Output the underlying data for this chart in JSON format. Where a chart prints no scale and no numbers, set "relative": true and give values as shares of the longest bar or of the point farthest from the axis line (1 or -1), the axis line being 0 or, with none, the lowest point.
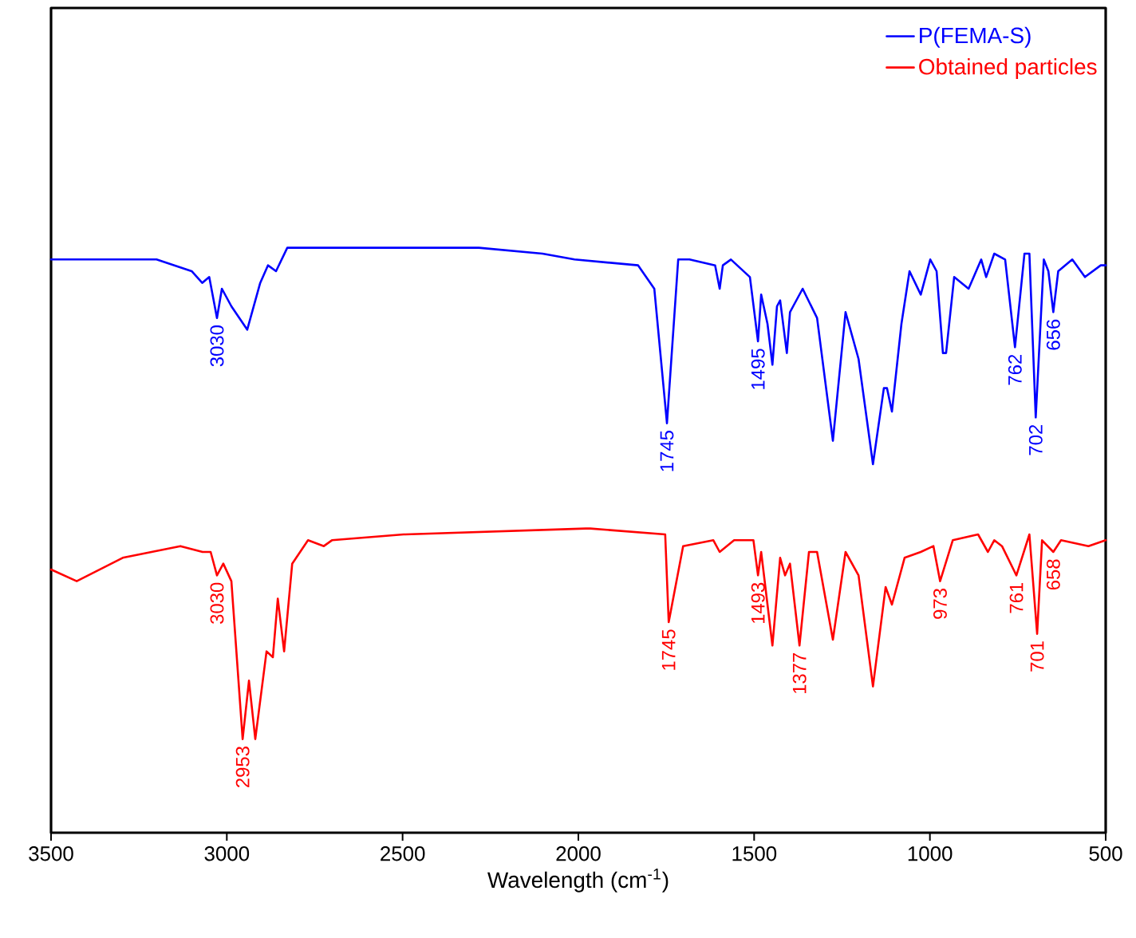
{
  "chart_data": {
    "type": "line",
    "relative": true,
    "xlabel": "Wavelength (cm$^{-1}$)",
    "xlim": [
      3500,
      500
    ],
    "xticks": [
      3500,
      3000,
      2500,
      2000,
      1500,
      1000,
      500
    ],
    "legend": "top right",
    "grid": false,
    "marker": "none",
    "line_style": "solid",
    "series": [
      {
        "name": "P(FEMA-S)",
        "color": "#0000ff",
        "x": [
          3500,
          3400,
          3200,
          3100,
          3070,
          3050,
          3028,
          3014,
          2987,
          2942,
          2905,
          2883,
          2860,
          2828,
          2283,
          2102,
          2011,
          1830,
          1784,
          1748,
          1716,
          1684,
          1611,
          1598,
          1589,
          1566,
          1512,
          1489,
          1480,
          1462,
          1448,
          1435,
          1426,
          1407,
          1398,
          1389,
          1362,
          1321,
          1276,
          1240,
          1203,
          1162,
          1131,
          1122,
          1108,
          1081,
          1058,
          1026,
          999,
          981,
          963,
          954,
          931,
          890,
          854,
          840,
          817,
          786,
          758,
          731,
          717,
          699,
          676,
          663,
          649,
          635,
          595,
          559,
          514,
          500
        ],
        "values": [
          0.98,
          0.98,
          0.98,
          0.96,
          0.94,
          0.95,
          0.88,
          0.93,
          0.9,
          0.86,
          0.94,
          0.97,
          0.96,
          1.0,
          1.0,
          0.99,
          0.98,
          0.97,
          0.93,
          0.7,
          0.98,
          0.98,
          0.97,
          0.93,
          0.97,
          0.98,
          0.95,
          0.84,
          0.92,
          0.87,
          0.8,
          0.9,
          0.91,
          0.82,
          0.89,
          0.9,
          0.93,
          0.88,
          0.67,
          0.89,
          0.81,
          0.63,
          0.76,
          0.76,
          0.72,
          0.87,
          0.96,
          0.92,
          0.98,
          0.96,
          0.82,
          0.82,
          0.95,
          0.93,
          0.98,
          0.95,
          0.99,
          0.98,
          0.83,
          0.99,
          0.99,
          0.71,
          0.98,
          0.96,
          0.89,
          0.96,
          0.98,
          0.95,
          0.97,
          0.97
        ]
      },
      {
        "name": "Obtained particles",
        "color": "#ff0000",
        "x": [
          3500,
          3427,
          3296,
          3132,
          3069,
          3046,
          3028,
          3010,
          2987,
          2955,
          2937,
          2919,
          2887,
          2869,
          2855,
          2837,
          2814,
          2769,
          2724,
          2701,
          2497,
          1979,
          1966,
          1753,
          1743,
          1702,
          1616,
          1598,
          1557,
          1502,
          1489,
          1480,
          1448,
          1426,
          1412,
          1398,
          1371,
          1344,
          1321,
          1276,
          1240,
          1203,
          1162,
          1126,
          1108,
          1072,
          1026,
          990,
          971,
          935,
          863,
          835,
          817,
          795,
          754,
          717,
          695,
          681,
          649,
          627,
          549,
          500
        ],
        "values": [
          0.45,
          0.43,
          0.47,
          0.49,
          0.48,
          0.48,
          0.44,
          0.46,
          0.43,
          0.16,
          0.26,
          0.16,
          0.31,
          0.3,
          0.4,
          0.31,
          0.46,
          0.5,
          0.49,
          0.5,
          0.51,
          0.52,
          0.52,
          0.51,
          0.36,
          0.49,
          0.5,
          0.48,
          0.5,
          0.5,
          0.44,
          0.48,
          0.32,
          0.47,
          0.44,
          0.46,
          0.32,
          0.48,
          0.48,
          0.33,
          0.48,
          0.44,
          0.25,
          0.42,
          0.39,
          0.47,
          0.48,
          0.49,
          0.43,
          0.5,
          0.51,
          0.48,
          0.5,
          0.49,
          0.44,
          0.51,
          0.34,
          0.5,
          0.48,
          0.5,
          0.49,
          0.5
        ]
      }
    ],
    "annotations": [
      {
        "text": "3030",
        "x": 3028,
        "y": 0.88
      },
      {
        "text": "1745",
        "x": 1748,
        "y": 0.7
      },
      {
        "text": "1495",
        "x": 1489,
        "y": 0.84
      },
      {
        "text": "762",
        "x": 758,
        "y": 0.83
      },
      {
        "text": "702",
        "x": 699,
        "y": 0.71
      },
      {
        "text": "656",
        "x": 649,
        "y": 0.89
      },
      {
        "text": "3030",
        "x": 3028,
        "y": 0.44
      },
      {
        "text": "2953",
        "x": 2955,
        "y": 0.16
      },
      {
        "text": "1745",
        "x": 1743,
        "y": 0.36
      },
      {
        "text": "1493",
        "x": 1489,
        "y": 0.44
      },
      {
        "text": "1377",
        "x": 1371,
        "y": 0.32
      },
      {
        "text": "973",
        "x": 971,
        "y": 0.43
      },
      {
        "text": "761",
        "x": 754,
        "y": 0.44
      },
      {
        "text": "701",
        "x": 695,
        "y": 0.34
      },
      {
        "text": "658",
        "x": 649,
        "y": 0.48
      }
    ]
  }
}
